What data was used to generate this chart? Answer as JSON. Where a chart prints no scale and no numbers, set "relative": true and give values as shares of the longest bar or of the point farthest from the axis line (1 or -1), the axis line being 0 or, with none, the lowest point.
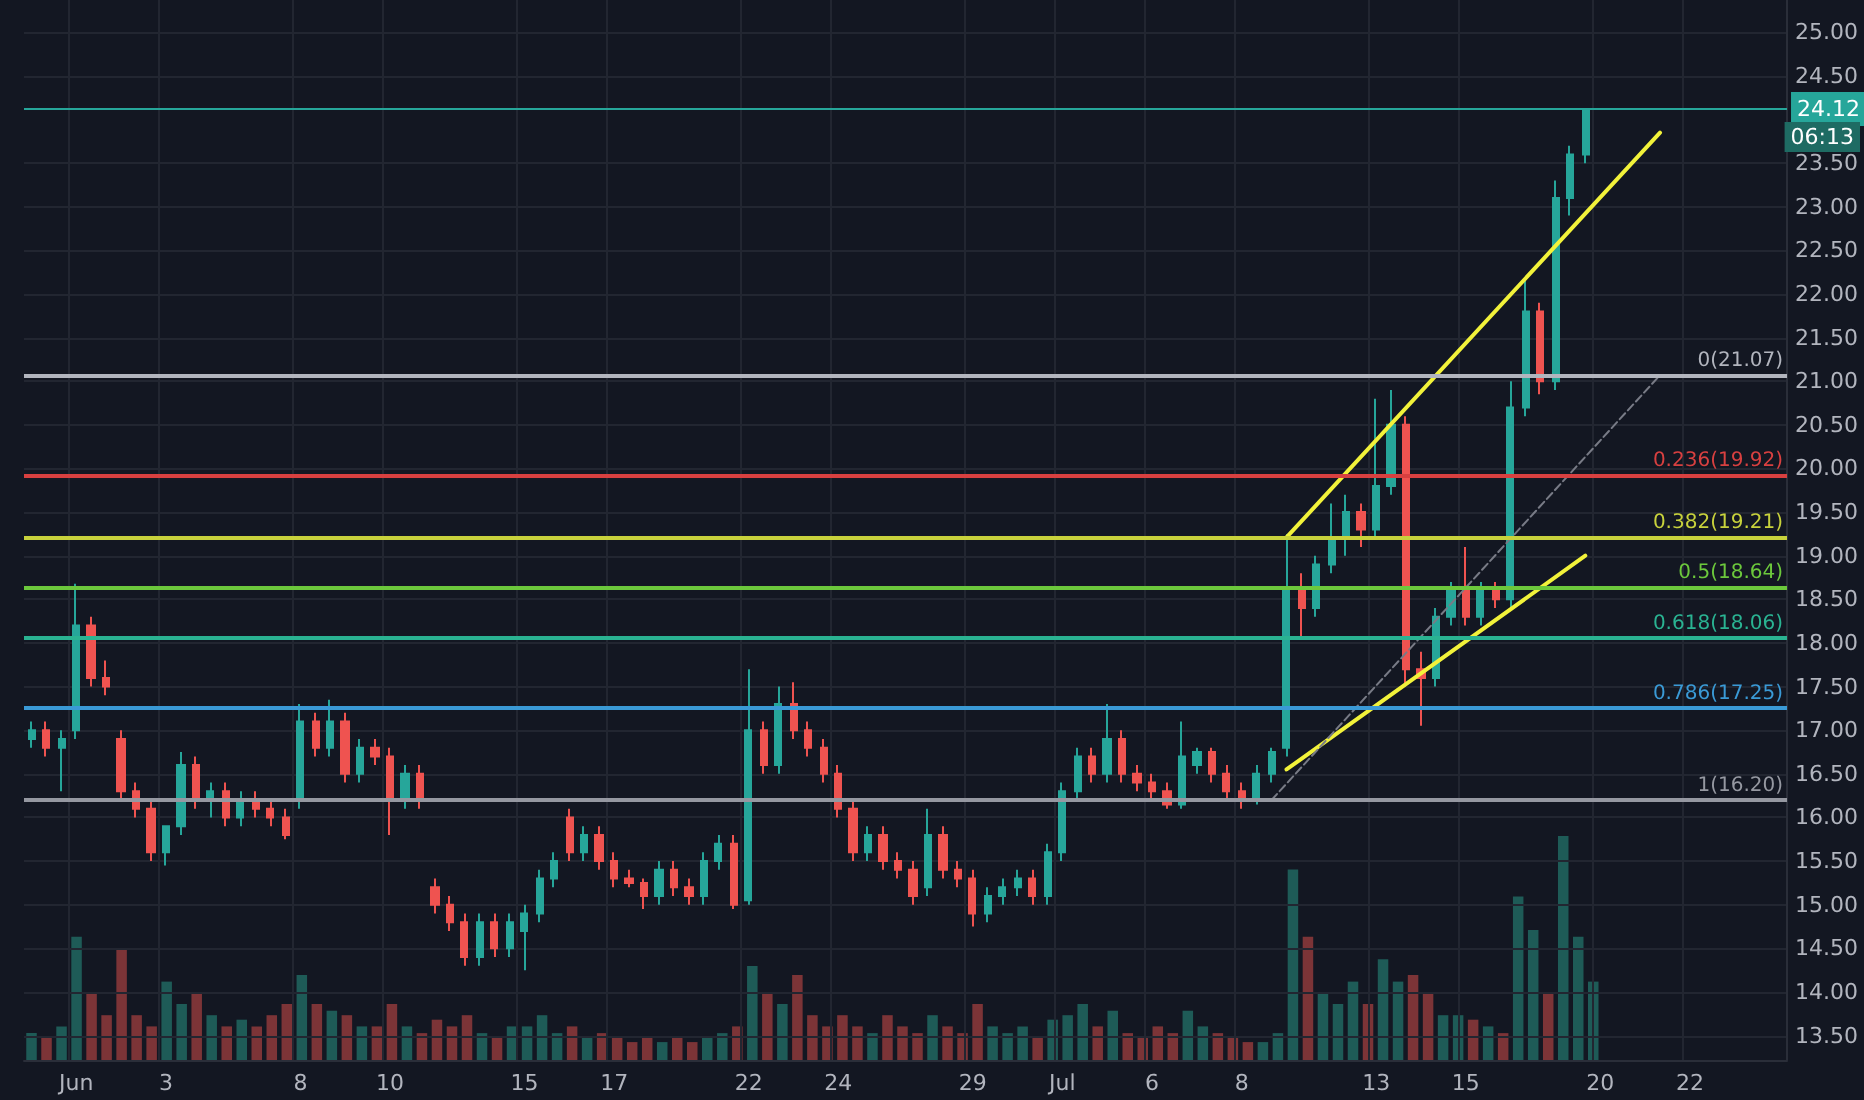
{
  "chart_data": [
    {
      "type": "candlestick",
      "categories": [
        null,
        null,
        null,
        "Jun",
        null,
        null,
        null,
        null,
        null,
        "3",
        null,
        null,
        null,
        null,
        null,
        null,
        null,
        null,
        "8",
        null,
        null,
        null,
        null,
        null,
        "10",
        null,
        null,
        null,
        null,
        null,
        null,
        null,
        null,
        "15",
        null,
        null,
        null,
        null,
        null,
        "17",
        null,
        null,
        null,
        null,
        null,
        null,
        null,
        null,
        "22",
        null,
        null,
        null,
        null,
        null,
        "24",
        null,
        null,
        null,
        null,
        null,
        null,
        null,
        null,
        "29",
        null,
        null,
        null,
        null,
        null,
        "Jul",
        null,
        null,
        null,
        null,
        null,
        "6",
        null,
        null,
        null,
        null,
        null,
        "8",
        null,
        null,
        null,
        null,
        null,
        null,
        null,
        null,
        "13",
        null,
        null,
        null,
        null,
        null,
        "15",
        null,
        null,
        null,
        null,
        null,
        null,
        null,
        null,
        "20",
        null,
        null,
        null,
        null,
        null,
        "22",
        null,
        null,
        null,
        null,
        null,
        null
      ],
      "ohlc": [
        [
          16.9,
          17.1,
          16.8,
          17.0
        ],
        [
          17.0,
          17.1,
          16.7,
          16.8
        ],
        [
          16.8,
          17.0,
          16.3,
          16.9
        ],
        [
          17.0,
          18.68,
          16.9,
          18.2
        ],
        [
          18.2,
          18.3,
          17.5,
          17.6
        ],
        [
          17.6,
          17.8,
          17.4,
          17.5
        ],
        [
          16.9,
          17.0,
          16.2,
          16.3
        ],
        [
          16.3,
          16.4,
          16.0,
          16.1
        ],
        [
          16.1,
          16.2,
          15.5,
          15.6
        ],
        [
          15.6,
          15.9,
          15.45,
          15.9
        ],
        [
          15.9,
          16.75,
          15.8,
          16.6
        ],
        [
          16.6,
          16.7,
          16.1,
          16.2
        ],
        [
          16.2,
          16.4,
          16.0,
          16.3
        ],
        [
          16.3,
          16.4,
          15.9,
          16.0
        ],
        [
          16.0,
          16.3,
          15.9,
          16.2
        ],
        [
          16.2,
          16.3,
          16.0,
          16.1
        ],
        [
          16.1,
          16.2,
          15.9,
          16.0
        ],
        [
          16.0,
          16.1,
          15.75,
          15.8
        ],
        [
          16.2,
          17.3,
          16.1,
          17.1
        ],
        [
          17.1,
          17.2,
          16.7,
          16.8
        ],
        [
          16.8,
          17.35,
          16.7,
          17.1
        ],
        [
          17.1,
          17.2,
          16.4,
          16.5
        ],
        [
          16.5,
          16.9,
          16.4,
          16.8
        ],
        [
          16.8,
          16.9,
          16.6,
          16.7
        ],
        [
          16.7,
          16.8,
          15.8,
          16.2
        ],
        [
          16.2,
          16.6,
          16.1,
          16.5
        ],
        [
          16.5,
          16.6,
          16.1,
          16.2
        ],
        [
          15.2,
          15.3,
          14.9,
          15.0
        ],
        [
          15.0,
          15.1,
          14.7,
          14.8
        ],
        [
          14.8,
          14.9,
          14.3,
          14.4
        ],
        [
          14.4,
          14.9,
          14.3,
          14.8
        ],
        [
          14.8,
          14.9,
          14.4,
          14.5
        ],
        [
          14.5,
          14.9,
          14.4,
          14.8
        ],
        [
          14.7,
          15.0,
          14.25,
          14.9
        ],
        [
          14.9,
          15.4,
          14.8,
          15.3
        ],
        [
          15.3,
          15.6,
          15.2,
          15.5
        ],
        [
          16.0,
          16.1,
          15.5,
          15.6
        ],
        [
          15.6,
          15.9,
          15.5,
          15.8
        ],
        [
          15.8,
          15.9,
          15.4,
          15.5
        ],
        [
          15.5,
          15.6,
          15.2,
          15.3
        ],
        [
          15.3,
          15.4,
          15.2,
          15.25
        ],
        [
          15.25,
          15.3,
          14.95,
          15.1
        ],
        [
          15.1,
          15.5,
          15.0,
          15.4
        ],
        [
          15.4,
          15.5,
          15.1,
          15.2
        ],
        [
          15.2,
          15.3,
          15.0,
          15.1
        ],
        [
          15.1,
          15.6,
          15.0,
          15.5
        ],
        [
          15.5,
          15.8,
          15.4,
          15.7
        ],
        [
          15.7,
          15.8,
          14.95,
          15.0
        ],
        [
          15.05,
          17.7,
          15.0,
          17.0
        ],
        [
          17.0,
          17.1,
          16.5,
          16.6
        ],
        [
          16.6,
          17.5,
          16.5,
          17.3
        ],
        [
          17.3,
          17.55,
          16.9,
          17.0
        ],
        [
          17.0,
          17.1,
          16.7,
          16.8
        ],
        [
          16.8,
          16.9,
          16.4,
          16.5
        ],
        [
          16.5,
          16.6,
          16.0,
          16.1
        ],
        [
          16.1,
          16.2,
          15.5,
          15.6
        ],
        [
          15.6,
          15.9,
          15.5,
          15.8
        ],
        [
          15.8,
          15.9,
          15.4,
          15.5
        ],
        [
          15.5,
          15.6,
          15.3,
          15.4
        ],
        [
          15.4,
          15.5,
          15.0,
          15.1
        ],
        [
          15.2,
          16.1,
          15.1,
          15.8
        ],
        [
          15.8,
          15.9,
          15.3,
          15.4
        ],
        [
          15.4,
          15.5,
          15.2,
          15.3
        ],
        [
          15.3,
          15.4,
          14.75,
          14.9
        ],
        [
          14.9,
          15.2,
          14.8,
          15.1
        ],
        [
          15.1,
          15.3,
          15.0,
          15.2
        ],
        [
          15.2,
          15.4,
          15.1,
          15.3
        ],
        [
          15.3,
          15.4,
          15.0,
          15.1
        ],
        [
          15.1,
          15.7,
          15.0,
          15.6
        ],
        [
          15.6,
          16.4,
          15.5,
          16.3
        ],
        [
          16.3,
          16.8,
          16.2,
          16.7
        ],
        [
          16.7,
          16.8,
          16.4,
          16.5
        ],
        [
          16.5,
          17.3,
          16.4,
          16.9
        ],
        [
          16.9,
          17.0,
          16.4,
          16.5
        ],
        [
          16.5,
          16.6,
          16.3,
          16.4
        ],
        [
          16.4,
          16.5,
          16.2,
          16.3
        ],
        [
          16.3,
          16.4,
          16.1,
          16.15
        ],
        [
          16.15,
          17.1,
          16.1,
          16.7
        ],
        [
          16.6,
          16.8,
          16.5,
          16.75
        ],
        [
          16.75,
          16.8,
          16.4,
          16.5
        ],
        [
          16.5,
          16.6,
          16.2,
          16.3
        ],
        [
          16.3,
          16.4,
          16.1,
          16.2
        ],
        [
          16.2,
          16.6,
          16.15,
          16.5
        ],
        [
          16.5,
          16.8,
          16.4,
          16.75
        ],
        [
          16.8,
          19.25,
          16.7,
          18.6
        ],
        [
          18.6,
          18.8,
          18.05,
          18.4
        ],
        [
          18.4,
          19.0,
          18.3,
          18.9
        ],
        [
          18.9,
          19.6,
          18.8,
          19.2
        ],
        [
          19.2,
          19.7,
          19.0,
          19.5
        ],
        [
          19.5,
          19.6,
          19.1,
          19.3
        ],
        [
          19.3,
          20.8,
          19.2,
          19.8
        ],
        [
          19.8,
          20.9,
          19.7,
          20.5
        ],
        [
          20.5,
          20.6,
          17.5,
          17.7
        ],
        [
          17.7,
          17.9,
          17.05,
          17.6
        ],
        [
          17.6,
          18.4,
          17.5,
          18.3
        ],
        [
          18.3,
          18.7,
          18.2,
          18.6
        ],
        [
          18.6,
          19.1,
          18.2,
          18.3
        ],
        [
          18.3,
          18.7,
          18.2,
          18.6
        ],
        [
          18.6,
          18.7,
          18.4,
          18.5
        ],
        [
          18.5,
          21.0,
          18.4,
          20.7
        ],
        [
          20.7,
          22.15,
          20.6,
          21.8
        ],
        [
          21.8,
          21.9,
          20.85,
          21.0
        ],
        [
          21.0,
          23.3,
          20.9,
          23.1
        ],
        [
          23.1,
          23.7,
          22.9,
          23.6
        ],
        [
          23.6,
          24.12,
          23.5,
          24.12
        ],
        null,
        null,
        null,
        null,
        null,
        null,
        null,
        null,
        null,
        null,
        null,
        null,
        null
      ],
      "colors": [
        "#26a69a",
        "#ef5350",
        "#26a69a",
        "#26a69a",
        "#ef5350",
        "#ef5350",
        "#ef5350",
        "#ef5350",
        "#ef5350",
        "#26a69a",
        "#26a69a",
        "#ef5350",
        "#26a69a",
        "#ef5350",
        "#26a69a",
        "#ef5350",
        "#ef5350",
        "#ef5350",
        "#26a69a",
        "#ef5350",
        "#26a69a",
        "#ef5350",
        "#26a69a",
        "#ef5350",
        "#ef5350",
        "#26a69a",
        "#ef5350",
        "#ef5350",
        "#ef5350",
        "#ef5350",
        "#26a69a",
        "#ef5350",
        "#26a69a",
        "#26a69a",
        "#26a69a",
        "#26a69a",
        "#ef5350",
        "#26a69a",
        "#ef5350",
        "#ef5350",
        "#ef5350",
        "#ef5350",
        "#26a69a",
        "#ef5350",
        "#ef5350",
        "#26a69a",
        "#26a69a",
        "#ef5350",
        "#26a69a",
        "#ef5350",
        "#26a69a",
        "#ef5350",
        "#ef5350",
        "#ef5350",
        "#ef5350",
        "#ef5350",
        "#26a69a",
        "#ef5350",
        "#ef5350",
        "#ef5350",
        "#26a69a",
        "#ef5350",
        "#ef5350",
        "#ef5350",
        "#26a69a",
        "#26a69a",
        "#26a69a",
        "#ef5350",
        "#26a69a",
        "#26a69a",
        "#26a69a",
        "#ef5350",
        "#26a69a",
        "#ef5350",
        "#ef5350",
        "#ef5350",
        "#ef5350",
        "#26a69a",
        "#26a69a",
        "#ef5350",
        "#ef5350",
        "#ef5350",
        "#26a69a",
        "#26a69a",
        "#26a69a",
        "#ef5350",
        "#26a69a",
        "#26a69a",
        "#26a69a",
        "#ef5350",
        "#26a69a",
        "#26a69a",
        "#ef5350",
        "#ef5350",
        "#26a69a",
        "#26a69a",
        "#ef5350",
        "#26a69a",
        "#ef5350",
        "#26a69a",
        "#26a69a",
        "#ef5350",
        "#26a69a",
        "#26a69a",
        "#26a69a",
        null,
        null,
        null,
        null,
        null,
        null,
        null,
        null,
        null,
        null,
        null,
        null,
        null
      ],
      "series": [
        {
          "type": "line",
          "color": "#f2f23a",
          "line_style": "solid",
          "values": [
            null,
            null,
            null,
            null,
            null,
            null,
            null,
            null,
            null,
            null,
            null,
            null,
            null,
            null,
            null,
            null,
            null,
            null,
            null,
            null,
            null,
            null,
            null,
            null,
            null,
            null,
            null,
            null,
            null,
            null,
            null,
            null,
            null,
            null,
            null,
            null,
            null,
            null,
            null,
            null,
            null,
            null,
            null,
            null,
            null,
            null,
            null,
            null,
            null,
            null,
            null,
            null,
            null,
            null,
            null,
            null,
            null,
            null,
            null,
            null,
            null,
            null,
            null,
            null,
            null,
            null,
            null,
            null,
            null,
            null,
            null,
            null,
            null,
            null,
            null,
            null,
            null,
            null,
            null,
            null,
            null,
            null,
            null,
            null,
            19.21,
            null,
            null,
            null,
            null,
            null,
            null,
            null,
            null,
            null,
            null,
            null,
            null,
            null,
            null,
            null,
            null,
            null,
            null,
            null,
            null,
            null,
            null,
            null,
            null,
            23.85,
            null,
            null,
            null,
            null,
            null,
            null,
            null,
            null
          ]
        },
        {
          "type": "line",
          "color": "#f2f23a",
          "line_style": "solid",
          "values": [
            null,
            null,
            null,
            null,
            null,
            null,
            null,
            null,
            null,
            null,
            null,
            null,
            null,
            null,
            null,
            null,
            null,
            null,
            null,
            null,
            null,
            null,
            null,
            null,
            null,
            null,
            null,
            null,
            null,
            null,
            null,
            null,
            null,
            null,
            null,
            null,
            null,
            null,
            null,
            null,
            null,
            null,
            null,
            null,
            null,
            null,
            null,
            null,
            null,
            null,
            null,
            null,
            null,
            null,
            null,
            null,
            null,
            null,
            null,
            null,
            null,
            null,
            null,
            null,
            null,
            null,
            null,
            null,
            null,
            null,
            null,
            null,
            null,
            null,
            null,
            null,
            null,
            null,
            null,
            null,
            null,
            null,
            null,
            null,
            16.55,
            null,
            null,
            null,
            null,
            null,
            null,
            null,
            null,
            null,
            null,
            null,
            null,
            null,
            null,
            null,
            null,
            null,
            null,
            null,
            19.0,
            null,
            null,
            null,
            null,
            null,
            null,
            null,
            null,
            null,
            null,
            null,
            null,
            null
          ]
        },
        {
          "type": "line",
          "color": "#787b86",
          "line_style": "dashed",
          "values": [
            null,
            null,
            null,
            null,
            null,
            null,
            null,
            null,
            null,
            null,
            null,
            null,
            null,
            null,
            null,
            null,
            null,
            null,
            null,
            null,
            null,
            null,
            null,
            null,
            null,
            null,
            null,
            null,
            null,
            null,
            null,
            null,
            null,
            null,
            null,
            null,
            null,
            null,
            null,
            null,
            null,
            null,
            null,
            null,
            null,
            null,
            null,
            null,
            null,
            null,
            null,
            null,
            null,
            null,
            null,
            null,
            null,
            null,
            null,
            null,
            null,
            null,
            null,
            null,
            null,
            null,
            null,
            null,
            null,
            null,
            null,
            null,
            null,
            null,
            null,
            null,
            null,
            null,
            null,
            null,
            null,
            null,
            null,
            16.2,
            null,
            null,
            null,
            null,
            null,
            null,
            null,
            null,
            null,
            null,
            null,
            null,
            null,
            null,
            null,
            null,
            null,
            null,
            null,
            null,
            null,
            null,
            null,
            null,
            null,
            21.07,
            null,
            null,
            null,
            null,
            null,
            null,
            null,
            null
          ]
        }
      ],
      "marker": "none",
      "ylim": [
        13.22,
        25.37
      ],
      "yticks": [
        {
          "value": 13.5,
          "label": "13.50"
        },
        {
          "value": 14,
          "label": "14.00"
        },
        {
          "value": 14.5,
          "label": "14.50"
        },
        {
          "value": 15,
          "label": "15.00"
        },
        {
          "value": 15.5,
          "label": "15.50"
        },
        {
          "value": 16,
          "label": "16.00"
        },
        {
          "value": 16.5,
          "label": "16.50"
        },
        {
          "value": 17,
          "label": "17.00"
        },
        {
          "value": 17.5,
          "label": "17.50"
        },
        {
          "value": 18,
          "label": "18.00"
        },
        {
          "value": 18.5,
          "label": "18.50"
        },
        {
          "value": 19,
          "label": "19.00"
        },
        {
          "value": 19.5,
          "label": "19.50"
        },
        {
          "value": 20,
          "label": "20.00"
        },
        {
          "value": 20.5,
          "label": "20.50"
        },
        {
          "value": 21,
          "label": "21.00"
        },
        {
          "value": 21.5,
          "label": "21.50"
        },
        {
          "value": 22,
          "label": "22.00"
        },
        {
          "value": 22.5,
          "label": "22.50"
        },
        {
          "value": 23,
          "label": "23.00"
        },
        {
          "value": 23.5,
          "label": "23.50"
        },
        {
          "value": 24.5,
          "label": "24.50"
        },
        {
          "value": 25,
          "label": "25.00"
        }
      ],
      "grid": true,
      "ref_lines": [
        {
          "axis": "y",
          "value": 21.07,
          "label": "0(21.07)",
          "color": "#b2b5be"
        },
        {
          "axis": "y",
          "value": 19.92,
          "label": "0.236(19.92)",
          "color": "#d84040"
        },
        {
          "axis": "y",
          "value": 19.21,
          "label": "0.382(19.21)",
          "color": "#c8d23c"
        },
        {
          "axis": "y",
          "value": 18.64,
          "label": "0.5(18.64)",
          "color": "#6cc83c"
        },
        {
          "axis": "y",
          "value": 18.06,
          "label": "0.618(18.06)",
          "color": "#2ab392"
        },
        {
          "axis": "y",
          "value": 17.25,
          "label": "0.786(17.25)",
          "color": "#3a9ad6"
        },
        {
          "axis": "y",
          "value": 16.2,
          "label": "1(16.20)",
          "color": "#9598a1"
        },
        {
          "axis": "y",
          "value": 24.12,
          "label": "24.12",
          "color": "#26a69a"
        }
      ],
      "annotations": [
        "06:13"
      ]
    },
    {
      "type": "bar",
      "relative": true,
      "tick_labels": false,
      "categories": [
        null,
        null,
        null,
        null,
        null,
        null,
        null,
        null,
        null,
        null,
        null,
        null,
        null,
        null,
        null,
        null,
        null,
        null,
        null,
        null,
        null,
        null,
        null,
        null,
        null,
        null,
        null,
        null,
        null,
        null,
        null,
        null,
        null,
        null,
        null,
        null,
        null,
        null,
        null,
        null,
        null,
        null,
        null,
        null,
        null,
        null,
        null,
        null,
        null,
        null,
        null,
        null,
        null,
        null,
        null,
        null,
        null,
        null,
        null,
        null,
        null,
        null,
        null,
        null,
        null,
        null,
        null,
        null,
        null,
        null,
        null,
        null,
        null,
        null,
        null,
        null,
        null,
        null,
        null,
        null,
        null,
        null,
        null,
        null,
        null,
        null,
        null,
        null,
        null,
        null,
        null,
        null,
        null,
        null,
        null,
        null,
        null,
        null,
        null,
        null,
        null,
        null,
        null,
        null,
        null,
        null,
        null,
        null,
        null,
        null,
        null,
        null,
        null,
        null,
        null,
        null,
        null,
        null
      ],
      "values": [
        0.12,
        0.1,
        0.15,
        0.55,
        0.3,
        0.2,
        0.5,
        0.2,
        0.15,
        0.35,
        0.25,
        0.3,
        0.2,
        0.15,
        0.18,
        0.15,
        0.2,
        0.25,
        0.38,
        0.25,
        0.22,
        0.2,
        0.15,
        0.15,
        0.25,
        0.15,
        0.12,
        0.18,
        0.15,
        0.2,
        0.12,
        0.1,
        0.15,
        0.15,
        0.2,
        0.12,
        0.15,
        0.1,
        0.12,
        0.1,
        0.08,
        0.1,
        0.08,
        0.1,
        0.08,
        0.1,
        0.12,
        0.15,
        0.42,
        0.3,
        0.25,
        0.38,
        0.2,
        0.15,
        0.2,
        0.15,
        0.12,
        0.2,
        0.15,
        0.12,
        0.2,
        0.15,
        0.12,
        0.25,
        0.15,
        0.12,
        0.15,
        0.1,
        0.18,
        0.2,
        0.25,
        0.15,
        0.22,
        0.12,
        0.1,
        0.15,
        0.12,
        0.22,
        0.15,
        0.12,
        0.1,
        0.08,
        0.08,
        0.12,
        0.85,
        0.55,
        0.3,
        0.25,
        0.35,
        0.25,
        0.45,
        0.35,
        0.38,
        0.3,
        0.2,
        0.2,
        0.18,
        0.15,
        0.12,
        0.73,
        0.58,
        0.3,
        1,
        0.55,
        0.35,
        null,
        null,
        null,
        null,
        null,
        null,
        null,
        null,
        null,
        null,
        null,
        null,
        null
      ],
      "colors": [
        "#1e5b57",
        "#7c3437",
        "#1e5b57",
        "#1e5b57",
        "#7c3437",
        "#7c3437",
        "#7c3437",
        "#7c3437",
        "#7c3437",
        "#1e5b57",
        "#1e5b57",
        "#7c3437",
        "#1e5b57",
        "#7c3437",
        "#1e5b57",
        "#7c3437",
        "#7c3437",
        "#7c3437",
        "#1e5b57",
        "#7c3437",
        "#1e5b57",
        "#7c3437",
        "#1e5b57",
        "#7c3437",
        "#7c3437",
        "#1e5b57",
        "#7c3437",
        "#7c3437",
        "#7c3437",
        "#7c3437",
        "#1e5b57",
        "#7c3437",
        "#1e5b57",
        "#1e5b57",
        "#1e5b57",
        "#1e5b57",
        "#7c3437",
        "#1e5b57",
        "#7c3437",
        "#7c3437",
        "#7c3437",
        "#7c3437",
        "#1e5b57",
        "#7c3437",
        "#7c3437",
        "#1e5b57",
        "#1e5b57",
        "#7c3437",
        "#1e5b57",
        "#7c3437",
        "#1e5b57",
        "#7c3437",
        "#7c3437",
        "#7c3437",
        "#7c3437",
        "#7c3437",
        "#1e5b57",
        "#7c3437",
        "#7c3437",
        "#7c3437",
        "#1e5b57",
        "#7c3437",
        "#7c3437",
        "#7c3437",
        "#1e5b57",
        "#1e5b57",
        "#1e5b57",
        "#7c3437",
        "#1e5b57",
        "#1e5b57",
        "#1e5b57",
        "#7c3437",
        "#1e5b57",
        "#7c3437",
        "#7c3437",
        "#7c3437",
        "#7c3437",
        "#1e5b57",
        "#1e5b57",
        "#7c3437",
        "#7c3437",
        "#7c3437",
        "#1e5b57",
        "#1e5b57",
        "#1e5b57",
        "#7c3437",
        "#1e5b57",
        "#1e5b57",
        "#1e5b57",
        "#7c3437",
        "#1e5b57",
        "#1e5b57",
        "#7c3437",
        "#7c3437",
        "#1e5b57",
        "#1e5b57",
        "#7c3437",
        "#1e5b57",
        "#7c3437",
        "#1e5b57",
        "#1e5b57",
        "#7c3437",
        "#1e5b57",
        "#1e5b57",
        "#1e5b57",
        null,
        null,
        null,
        null,
        null,
        null,
        null,
        null,
        null,
        null,
        null,
        null,
        null
      ]
    }
  ]
}
